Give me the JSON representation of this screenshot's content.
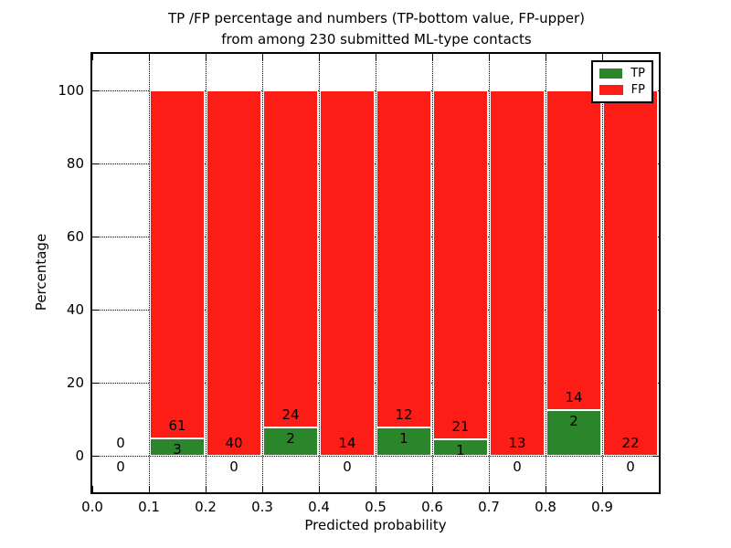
{
  "chart_data": {
    "type": "bar",
    "stacked": true,
    "title_lines": [
      "TP /FP percentage and numbers (TP-bottom value, FP-upper)",
      "from among 230 submitted ML-type contacts"
    ],
    "xlabel": "Predicted probability",
    "ylabel": "Percentage",
    "xlim": [
      0.0,
      1.0
    ],
    "ylim": [
      -10,
      110
    ],
    "x_ticks": [
      "0.0",
      "0.1",
      "0.2",
      "0.3",
      "0.4",
      "0.5",
      "0.6",
      "0.7",
      "0.8",
      "0.9"
    ],
    "y_ticks": [
      "0",
      "20",
      "40",
      "60",
      "80",
      "100"
    ],
    "grid": "dotted",
    "total_submitted": 230,
    "legend": {
      "position": "upper right",
      "entries": [
        {
          "label": "TP",
          "color": "#2b862b"
        },
        {
          "label": "FP",
          "color": "#fc1d17"
        }
      ]
    },
    "colors": {
      "tp": "#2b862b",
      "fp": "#fc1d17",
      "bar_edge": "#ffffff",
      "text": "#000000"
    },
    "bins": [
      {
        "x_range": [
          0.0,
          0.1
        ],
        "tp_count": 0,
        "fp_count": 0,
        "tp_pct": 0,
        "fp_pct": 0
      },
      {
        "x_range": [
          0.1,
          0.2
        ],
        "tp_count": 3,
        "fp_count": 61,
        "tp_pct": 4.69,
        "fp_pct": 95.31
      },
      {
        "x_range": [
          0.2,
          0.3
        ],
        "tp_count": 0,
        "fp_count": 40,
        "tp_pct": 0,
        "fp_pct": 100
      },
      {
        "x_range": [
          0.3,
          0.4
        ],
        "tp_count": 2,
        "fp_count": 24,
        "tp_pct": 7.69,
        "fp_pct": 92.31
      },
      {
        "x_range": [
          0.4,
          0.5
        ],
        "tp_count": 0,
        "fp_count": 14,
        "tp_pct": 0,
        "fp_pct": 100
      },
      {
        "x_range": [
          0.5,
          0.6
        ],
        "tp_count": 1,
        "fp_count": 12,
        "tp_pct": 7.69,
        "fp_pct": 92.31
      },
      {
        "x_range": [
          0.6,
          0.7
        ],
        "tp_count": 1,
        "fp_count": 21,
        "tp_pct": 4.55,
        "fp_pct": 95.45
      },
      {
        "x_range": [
          0.7,
          0.8
        ],
        "tp_count": 0,
        "fp_count": 13,
        "tp_pct": 0,
        "fp_pct": 100
      },
      {
        "x_range": [
          0.8,
          0.9
        ],
        "tp_count": 2,
        "fp_count": 14,
        "tp_pct": 12.5,
        "fp_pct": 87.5
      },
      {
        "x_range": [
          0.9,
          1.0
        ],
        "tp_count": 0,
        "fp_count": 22,
        "tp_pct": 0,
        "fp_pct": 100
      }
    ]
  }
}
